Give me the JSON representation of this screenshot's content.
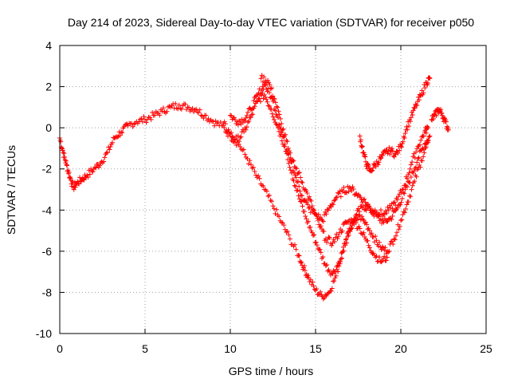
{
  "chart_data": {
    "type": "scatter",
    "title": "Day 214 of 2023, Sidereal Day-to-day VTEC variation (SDTVAR) for receiver p050",
    "xlabel": "GPS time / hours",
    "ylabel": "SDTVAR / TECUs",
    "xlim": [
      0,
      25
    ],
    "ylim": [
      -10,
      4
    ],
    "xticks": [
      0,
      5,
      10,
      15,
      20,
      25
    ],
    "yticks": [
      -10,
      -8,
      -6,
      -4,
      -2,
      0,
      2,
      4
    ],
    "grid": true,
    "marker": "+",
    "marker_color": "#ff0000",
    "series": [
      {
        "x": [
          0.0,
          0.2,
          0.4,
          0.6,
          0.8,
          1.0,
          1.3,
          1.6,
          2.0,
          2.4,
          2.8,
          3.2,
          3.6,
          4.0,
          4.5,
          5.0,
          5.5,
          6.0,
          6.5,
          7.0,
          7.5,
          8.0,
          8.5,
          9.0,
          9.5,
          10.0,
          10.5,
          11.0,
          11.5,
          12.0,
          12.5,
          13.0,
          13.5,
          14.0,
          14.3,
          14.6,
          15.0,
          15.4,
          15.8,
          16.2,
          16.6,
          17.0,
          17.4,
          17.8,
          18.2,
          18.6,
          19.0,
          19.4,
          19.8,
          20.2,
          20.6,
          21.0,
          21.4,
          21.7
        ],
        "y": [
          -0.5,
          -1.2,
          -1.8,
          -2.4,
          -2.9,
          -2.7,
          -2.5,
          -2.3,
          -2.0,
          -1.7,
          -1.2,
          -0.5,
          -0.2,
          0.1,
          0.3,
          0.4,
          0.6,
          0.8,
          1.0,
          1.1,
          1.0,
          0.9,
          0.6,
          0.3,
          0.1,
          -0.4,
          -0.8,
          -1.5,
          -2.3,
          -3.0,
          -3.8,
          -4.6,
          -5.4,
          -6.2,
          -6.8,
          -7.3,
          -7.9,
          -8.2,
          -8.0,
          -7.2,
          -6.0,
          -5.0,
          -4.2,
          -3.8,
          -4.0,
          -4.3,
          -4.6,
          -4.4,
          -3.9,
          -3.2,
          -2.4,
          -1.5,
          -0.8,
          -0.4
        ]
      },
      {
        "x": [
          10.0,
          10.4,
          10.8,
          11.2,
          11.6,
          12.0,
          12.4,
          12.8,
          13.2,
          13.6,
          14.0,
          14.4,
          14.8,
          15.2,
          15.6,
          16.0,
          16.4,
          16.8,
          17.2,
          17.6,
          18.0,
          18.4,
          18.8,
          19.2,
          19.6,
          20.0,
          20.4,
          20.8,
          21.2,
          21.6
        ],
        "y": [
          0.6,
          0.3,
          0.4,
          0.9,
          1.6,
          2.1,
          1.5,
          0.5,
          -0.8,
          -2.2,
          -3.3,
          -4.3,
          -5.1,
          -5.9,
          -6.7,
          -7.1,
          -6.5,
          -5.4,
          -4.6,
          -4.3,
          -4.7,
          -5.3,
          -5.8,
          -6.0,
          -5.4,
          -4.5,
          -3.6,
          -2.6,
          -1.6,
          -0.7
        ]
      },
      {
        "x": [
          9.6,
          10.0,
          10.4,
          10.8,
          11.2,
          11.6,
          12.0,
          12.4,
          12.8,
          13.2,
          13.6,
          14.0,
          14.4,
          14.8,
          15.2,
          15.6,
          16.0,
          16.4,
          16.8,
          17.2,
          17.6,
          18.0,
          18.4,
          18.8,
          19.2
        ],
        "y": [
          0.2,
          -0.3,
          -0.6,
          -0.2,
          0.5,
          1.3,
          1.6,
          0.9,
          0.0,
          -0.9,
          -1.6,
          -2.2,
          -3.0,
          -3.8,
          -4.7,
          -5.4,
          -5.6,
          -5.1,
          -4.6,
          -4.5,
          -4.9,
          -5.5,
          -6.1,
          -6.5,
          -6.3
        ]
      },
      {
        "x": [
          11.8,
          12.2,
          12.6,
          13.0,
          13.4,
          13.8,
          14.2,
          14.6,
          15.0,
          15.4,
          15.8,
          16.2,
          16.6,
          17.0,
          17.4,
          17.8,
          18.2,
          18.6,
          19.0,
          19.4,
          19.8,
          20.2,
          20.6,
          21.0,
          21.4,
          21.6
        ],
        "y": [
          2.4,
          2.3,
          1.4,
          0.2,
          -1.0,
          -2.3,
          -3.3,
          -3.9,
          -4.2,
          -4.5,
          -3.9,
          -3.4,
          -3.1,
          -2.9,
          -3.2,
          -3.5,
          -3.9,
          -4.1,
          -4.2,
          -3.9,
          -3.5,
          -2.8,
          -1.8,
          -0.9,
          -0.2,
          0.0
        ]
      },
      {
        "x": [
          17.6,
          17.8,
          18.0,
          18.2,
          18.5,
          18.8,
          19.1,
          19.4,
          19.7,
          20.0,
          20.3,
          20.6,
          20.9,
          21.2,
          21.5,
          21.7
        ],
        "y": [
          -0.4,
          -1.2,
          -1.8,
          -2.1,
          -1.8,
          -1.5,
          -1.2,
          -1.1,
          -1.3,
          -0.9,
          -0.1,
          0.5,
          1.1,
          1.6,
          2.2,
          2.4
        ]
      },
      {
        "x": [
          21.8,
          22.0,
          22.2,
          22.4,
          22.6,
          22.8
        ],
        "y": [
          0.4,
          0.6,
          0.9,
          0.7,
          0.3,
          -0.1
        ]
      }
    ]
  }
}
